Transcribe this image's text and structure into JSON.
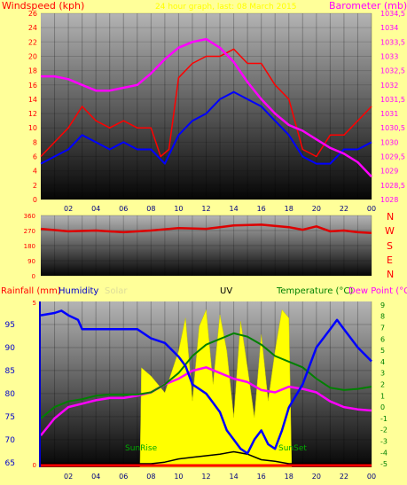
{
  "colors": {
    "background": "#ffff99",
    "wind": "#ff0000",
    "gust": "#ff0000",
    "avg_wind": "#0000ff",
    "barometer": "#ff00ff",
    "direction": "#dd0000",
    "humidity": "#0000ff",
    "solar": "#ffff00",
    "uv": "#000000",
    "temperature": "#008000",
    "dew_point": "#ff00ff",
    "rain": "#ff0000",
    "title": "#ffff00",
    "sun_marker": "#00aa00"
  },
  "header": {
    "windspeed_label": "Windspeed (kph)",
    "date_title": "24 hour graph, last: 08 March 2015",
    "barometer_label": "Barometer (mb)"
  },
  "compass": {
    "n": "N",
    "w": "W",
    "s": "S",
    "e": "E",
    "n2": "N"
  },
  "lower_header": {
    "rainfall": "Rainfall (mm)",
    "humidity": "Humidity",
    "solar": "Solar",
    "uv": "UV",
    "temperature": "Temperature (°C)",
    "dew_point": "Dew Point (°C"
  },
  "markers": {
    "sunrise": "SunRise",
    "sunset": "SunSet"
  },
  "chart_data": [
    {
      "type": "line",
      "panel": "wind-barometer",
      "x_ticks": [
        "02",
        "04",
        "06",
        "08",
        "10",
        "12",
        "14",
        "16",
        "18",
        "20",
        "22",
        "00"
      ],
      "y_left_ticks": [
        0,
        2,
        4,
        6,
        8,
        10,
        12,
        14,
        16,
        18,
        20,
        22,
        24,
        26
      ],
      "y_left_range": [
        0,
        26
      ],
      "y_right_ticks": [
        "1028",
        "1028,5",
        "1029",
        "1029,5",
        "1030",
        "1030,5",
        "1031",
        "1031,5",
        "1032",
        "1032,5",
        "1033",
        "1033,5",
        "1034",
        "1034,5"
      ],
      "y_right_range": [
        1028,
        1034.5
      ],
      "x_range_hours": [
        0,
        24
      ],
      "series": [
        {
          "role": "gust",
          "x": [
            0,
            1,
            2,
            3,
            4,
            5,
            6,
            7,
            8,
            8.7,
            9.3,
            10,
            11,
            12,
            13,
            14,
            15,
            16,
            17,
            18,
            19,
            20,
            21,
            22,
            23,
            24
          ],
          "y": [
            6,
            8,
            10,
            13,
            11,
            10,
            11,
            10,
            10,
            6,
            7,
            17,
            19,
            20,
            20,
            21,
            19,
            19,
            16,
            14,
            7,
            6,
            9,
            9,
            11,
            13
          ]
        },
        {
          "role": "average-wind",
          "x": [
            0,
            1,
            2,
            3,
            4,
            5,
            6,
            7,
            8,
            9,
            10,
            11,
            12,
            13,
            14,
            15,
            16,
            17,
            18,
            19,
            20,
            21,
            22,
            23,
            24
          ],
          "y": [
            5,
            6,
            7,
            9,
            8,
            7,
            8,
            7,
            7,
            5,
            9,
            11,
            12,
            14,
            15,
            14,
            13,
            11,
            9,
            6,
            5,
            5,
            7,
            7,
            8
          ]
        },
        {
          "role": "barometer",
          "x": [
            0,
            1,
            2,
            3,
            4,
            5,
            6,
            7,
            8,
            9,
            10,
            11,
            12,
            13,
            14,
            15,
            16,
            17,
            18,
            19,
            20,
            21,
            22,
            23,
            24
          ],
          "y": [
            1032.3,
            1032.3,
            1032.2,
            1032.0,
            1031.8,
            1031.8,
            1031.9,
            1032.0,
            1032.4,
            1032.9,
            1033.3,
            1033.5,
            1033.6,
            1033.3,
            1032.8,
            1032.1,
            1031.5,
            1031.0,
            1030.6,
            1030.4,
            1030.1,
            1029.8,
            1029.6,
            1029.3,
            1028.8
          ]
        }
      ]
    },
    {
      "type": "line",
      "panel": "wind-direction",
      "x_range_hours": [
        0,
        24
      ],
      "y_ticks": [
        0,
        90,
        180,
        270,
        360
      ],
      "y_range": [
        0,
        360
      ],
      "series": [
        {
          "role": "direction",
          "x": [
            0,
            2,
            4,
            6,
            8,
            10,
            12,
            14,
            16,
            18,
            19,
            20,
            21,
            22,
            23,
            24
          ],
          "y": [
            280,
            265,
            270,
            260,
            270,
            285,
            280,
            300,
            305,
            290,
            275,
            295,
            265,
            270,
            260,
            255
          ]
        }
      ]
    },
    {
      "type": "line",
      "panel": "temperature-humidity-solar",
      "x_ticks": [
        "02",
        "04",
        "06",
        "08",
        "10",
        "12",
        "14",
        "16",
        "18",
        "20",
        "22",
        "00"
      ],
      "x_range_hours": [
        0,
        24
      ],
      "y_left_rain_ticks": [
        0,
        5
      ],
      "y_left_humidity_ticks": [
        65,
        70,
        75,
        80,
        85,
        90,
        95
      ],
      "y_humidity_range": [
        64,
        100
      ],
      "y_right_ticks": [
        -5,
        -4,
        -3,
        -2,
        -1,
        0,
        1,
        2,
        3,
        4,
        5,
        6,
        7,
        8,
        9
      ],
      "y_right_range": [
        -5.3,
        9.3
      ],
      "series": [
        {
          "role": "humidity",
          "x": [
            0,
            1,
            1.5,
            2,
            2.7,
            3,
            4,
            5,
            6,
            7,
            7.5,
            8,
            9,
            10,
            10.5,
            11,
            12,
            12.5,
            13,
            13.5,
            14,
            14.5,
            15,
            15.5,
            16,
            16.5,
            17,
            17.5,
            18,
            19,
            20,
            21,
            21.5,
            22,
            23,
            24
          ],
          "y": [
            97,
            97.5,
            98,
            97,
            96,
            94,
            94,
            94,
            94,
            94,
            93,
            92,
            91,
            88,
            86,
            82,
            80,
            78,
            76,
            72,
            70,
            68,
            67,
            70,
            72,
            69,
            68,
            72,
            77,
            82,
            90,
            94,
            96,
            94,
            90,
            87
          ]
        },
        {
          "role": "temperature",
          "x": [
            0,
            1,
            2,
            3,
            4,
            5,
            6,
            7,
            8,
            9,
            10,
            11,
            12,
            13,
            14,
            15,
            16,
            17,
            18,
            19,
            20,
            21,
            22,
            23,
            24
          ],
          "y": [
            -1,
            0,
            0.5,
            0.7,
            1,
            1.1,
            1.1,
            1.1,
            1.3,
            2,
            3,
            4.5,
            5.5,
            6,
            6.5,
            6.2,
            5.5,
            4.5,
            4,
            3.5,
            2.5,
            1.7,
            1.5,
            1.6,
            1.8
          ]
        },
        {
          "role": "dew-point",
          "x": [
            0,
            1,
            2,
            3,
            4,
            5,
            6,
            7,
            8,
            9,
            10,
            11,
            12,
            13,
            14,
            15,
            16,
            17,
            18,
            19,
            20,
            21,
            22,
            23,
            24
          ],
          "y": [
            -2.5,
            -1,
            0,
            0.3,
            0.6,
            0.8,
            0.8,
            1,
            1.3,
            2,
            2.5,
            3.2,
            3.5,
            3,
            2.5,
            2.2,
            1.5,
            1.3,
            1.8,
            1.6,
            1.3,
            0.5,
            0,
            -0.2,
            -0.3
          ]
        },
        {
          "role": "solar",
          "x": [
            7.2,
            7.3,
            8,
            9,
            10,
            10.5,
            11,
            11.5,
            12,
            12.5,
            13,
            13.5,
            14,
            14.5,
            15,
            15.5,
            16,
            16.5,
            17,
            17.5,
            18,
            18.2
          ],
          "y": [
            0,
            60,
            55,
            45,
            70,
            90,
            40,
            85,
            95,
            50,
            92,
            70,
            30,
            88,
            60,
            30,
            80,
            40,
            70,
            95,
            90,
            0
          ]
        },
        {
          "role": "uv",
          "x": [
            0,
            7,
            8,
            9,
            10,
            11,
            12,
            13,
            14,
            15,
            16,
            17,
            18,
            24
          ],
          "y": [
            0,
            0,
            0,
            0.2,
            0.6,
            0.8,
            1,
            1.2,
            1.5,
            1.2,
            0.5,
            0.3,
            0,
            0
          ]
        },
        {
          "role": "rain",
          "x": [
            0,
            24
          ],
          "y": [
            0.1,
            0.1
          ]
        }
      ],
      "sunrise_hour": 7.2,
      "sunset_hour": 18.2
    }
  ]
}
